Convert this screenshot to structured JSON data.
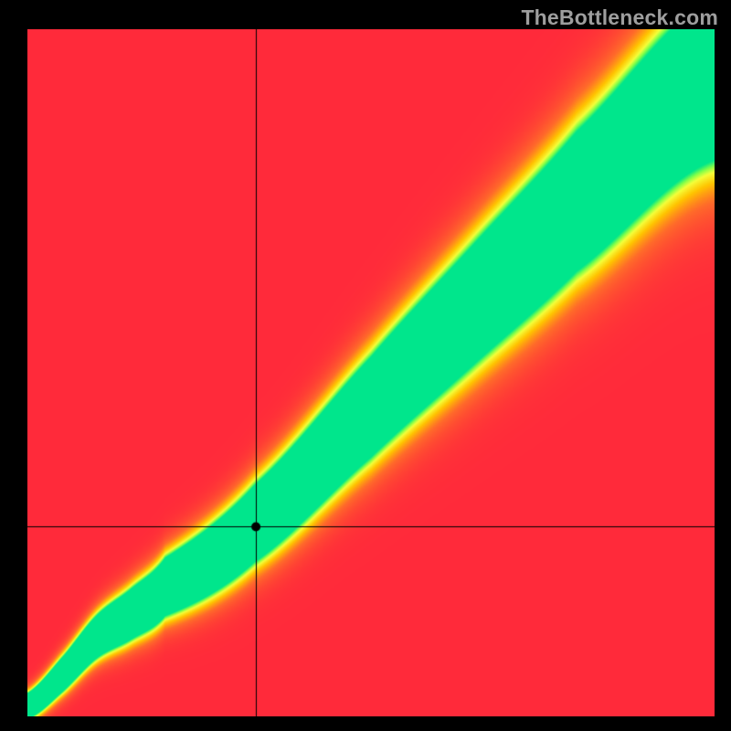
{
  "watermark": {
    "text": "TheBottleneck.com",
    "fontFamily": "Arial, Helvetica, sans-serif",
    "fontSizePx": 23,
    "fontWeight": 600,
    "color": "#9e9e9e"
  },
  "chart": {
    "type": "heatmap",
    "canvasX": 30,
    "canvasY": 32,
    "canvasSize": 752,
    "backgroundColor": "#000000",
    "ridgeColor": "#00e68c",
    "palette": {
      "stops": [
        {
          "t": 0.0,
          "color": "#ff2a3a"
        },
        {
          "t": 0.3,
          "color": "#ff6a2a"
        },
        {
          "t": 0.55,
          "color": "#ffc400"
        },
        {
          "t": 0.75,
          "color": "#f4ff3a"
        },
        {
          "t": 0.88,
          "color": "#7eff4a"
        },
        {
          "t": 1.0,
          "color": "#00e68c"
        }
      ]
    },
    "ridge": {
      "controlPoints": [
        {
          "u": 0.0,
          "v": 0.015
        },
        {
          "u": 0.05,
          "v": 0.06
        },
        {
          "u": 0.1,
          "v": 0.115
        },
        {
          "u": 0.15,
          "v": 0.148
        },
        {
          "u": 0.2,
          "v": 0.188
        },
        {
          "u": 0.33,
          "v": 0.28
        },
        {
          "u": 0.5,
          "v": 0.45
        },
        {
          "u": 0.65,
          "v": 0.6
        },
        {
          "u": 0.8,
          "v": 0.75
        },
        {
          "u": 1.0,
          "v": 0.93
        }
      ],
      "thicknessStart": 0.018,
      "thicknessEnd": 0.12,
      "falloffSharpness": 2.6
    },
    "crosshair": {
      "u": 0.333,
      "v": 0.275,
      "lineColor": "#000000",
      "lineWidth": 1.0,
      "dotRadius": 5,
      "dotColor": "#000000"
    }
  }
}
